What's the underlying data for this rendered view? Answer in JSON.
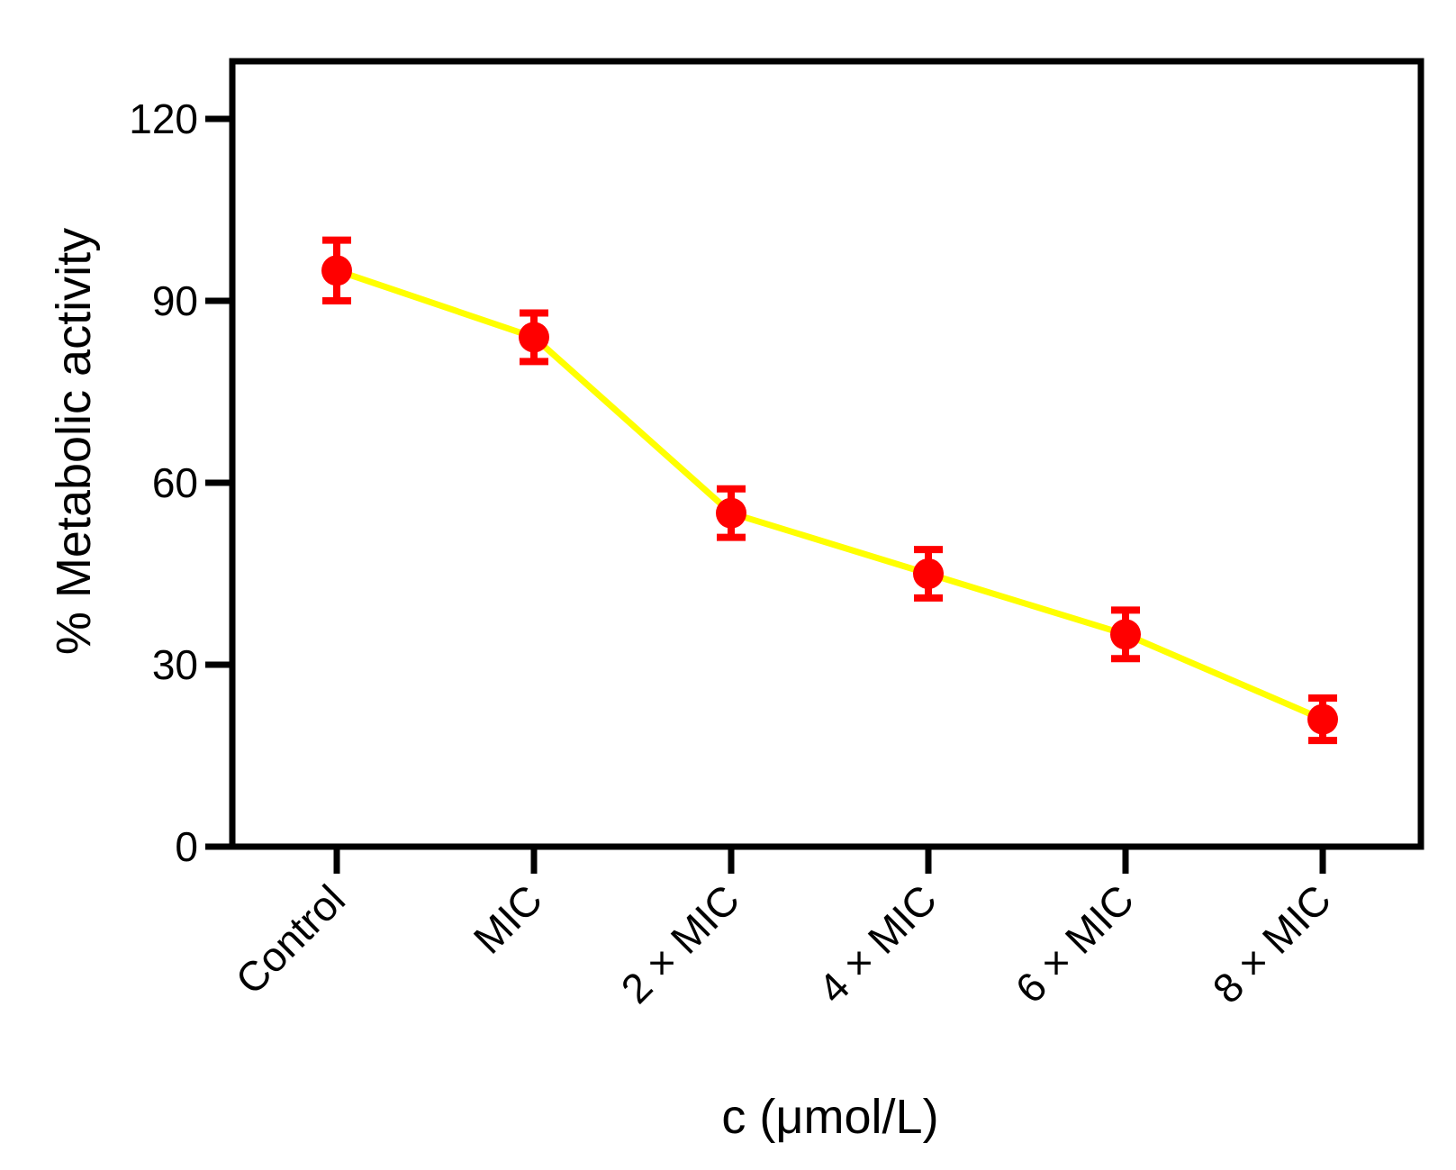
{
  "chart_data": {
    "type": "line",
    "title": "",
    "xlabel": "c (μmol/L)",
    "ylabel": "% Metabolic activity",
    "categories": [
      "Control",
      "MIC",
      "2 × MIC",
      "4 × MIC",
      "6 × MIC",
      "8 × MIC"
    ],
    "series": [
      {
        "values": [
          95,
          84,
          55,
          45,
          35,
          21
        ],
        "errors": [
          5,
          4,
          4,
          4,
          4,
          3.5
        ]
      }
    ],
    "ylim": [
      0,
      120
    ],
    "yticks": [
      "0",
      "30",
      "60",
      "90",
      "120"
    ],
    "grid": false,
    "legend": "none",
    "colors": {
      "line": "#ffff00",
      "marker": "#ff0000",
      "axis": "#000000"
    }
  }
}
